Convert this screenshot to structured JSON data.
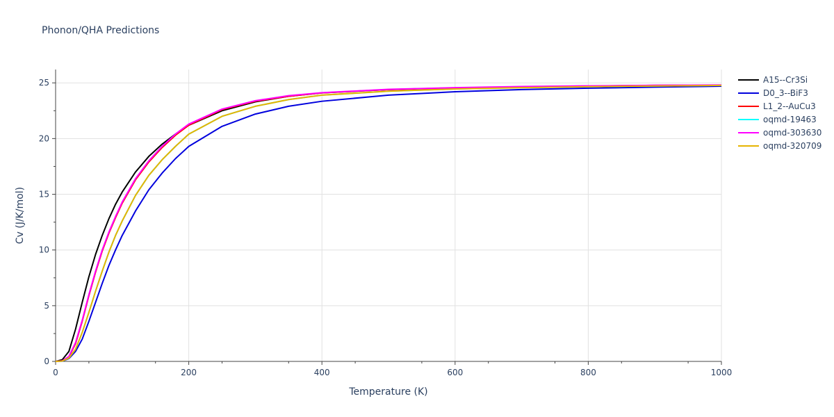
{
  "chart_data": {
    "type": "line",
    "title": "Phonon/QHA Predictions",
    "xlabel": "Temperature (K)",
    "ylabel": "Cv (J/K/mol)",
    "xlim": [
      0,
      1000
    ],
    "ylim": [
      0,
      26.2
    ],
    "xticks": [
      0,
      200,
      400,
      600,
      800,
      1000
    ],
    "yticks": [
      0,
      5,
      10,
      15,
      20,
      25
    ],
    "grid": true,
    "legend_position": "top-right",
    "x": [
      0,
      10,
      20,
      30,
      40,
      50,
      60,
      70,
      80,
      90,
      100,
      120,
      140,
      160,
      180,
      200,
      250,
      300,
      350,
      400,
      500,
      600,
      700,
      800,
      900,
      1000
    ],
    "series": [
      {
        "name": "A15--Cr3Si",
        "color": "#000000",
        "values": [
          0,
          0.15,
          0.9,
          2.9,
          5.3,
          7.6,
          9.6,
          11.3,
          12.8,
          14.1,
          15.2,
          17.0,
          18.4,
          19.5,
          20.4,
          21.2,
          22.5,
          23.3,
          23.8,
          24.1,
          24.4,
          24.55,
          24.65,
          24.72,
          24.77,
          24.8
        ]
      },
      {
        "name": "D0_3--BiF3",
        "color": "#0000dd",
        "values": [
          0,
          0.02,
          0.25,
          0.9,
          2.0,
          3.6,
          5.3,
          7.0,
          8.6,
          10.0,
          11.3,
          13.5,
          15.4,
          16.9,
          18.2,
          19.3,
          21.1,
          22.2,
          22.9,
          23.35,
          23.9,
          24.2,
          24.4,
          24.52,
          24.62,
          24.7
        ]
      },
      {
        "name": "L1_2--AuCu3",
        "color": "#ff0000",
        "values": [
          0,
          0.05,
          0.4,
          1.6,
          3.6,
          5.9,
          8.0,
          9.9,
          11.5,
          12.9,
          14.2,
          16.3,
          17.9,
          19.2,
          20.3,
          21.2,
          22.6,
          23.35,
          23.8,
          24.1,
          24.4,
          24.55,
          24.65,
          24.72,
          24.77,
          24.8
        ]
      },
      {
        "name": "oqmd-19463",
        "color": "#00ffff",
        "values": [
          0,
          0.03,
          0.3,
          1.1,
          2.6,
          4.4,
          6.3,
          8.1,
          9.8,
          11.3,
          12.6,
          14.9,
          16.7,
          18.1,
          19.3,
          20.4,
          22.0,
          22.9,
          23.5,
          23.9,
          24.25,
          24.45,
          24.57,
          24.66,
          24.72,
          24.77
        ]
      },
      {
        "name": "oqmd-303630",
        "color": "#ff00ff",
        "values": [
          0,
          0.05,
          0.45,
          1.7,
          3.7,
          6.0,
          8.1,
          10.0,
          11.6,
          13.0,
          14.3,
          16.4,
          18.0,
          19.3,
          20.4,
          21.3,
          22.65,
          23.4,
          23.85,
          24.12,
          24.42,
          24.57,
          24.67,
          24.73,
          24.78,
          24.81
        ]
      },
      {
        "name": "oqmd-320709",
        "color": "#e6b400",
        "values": [
          0,
          0.03,
          0.3,
          1.1,
          2.6,
          4.4,
          6.3,
          8.1,
          9.8,
          11.3,
          12.6,
          14.9,
          16.7,
          18.1,
          19.3,
          20.4,
          22.0,
          22.9,
          23.5,
          23.9,
          24.25,
          24.45,
          24.57,
          24.66,
          24.72,
          24.77
        ]
      }
    ]
  }
}
